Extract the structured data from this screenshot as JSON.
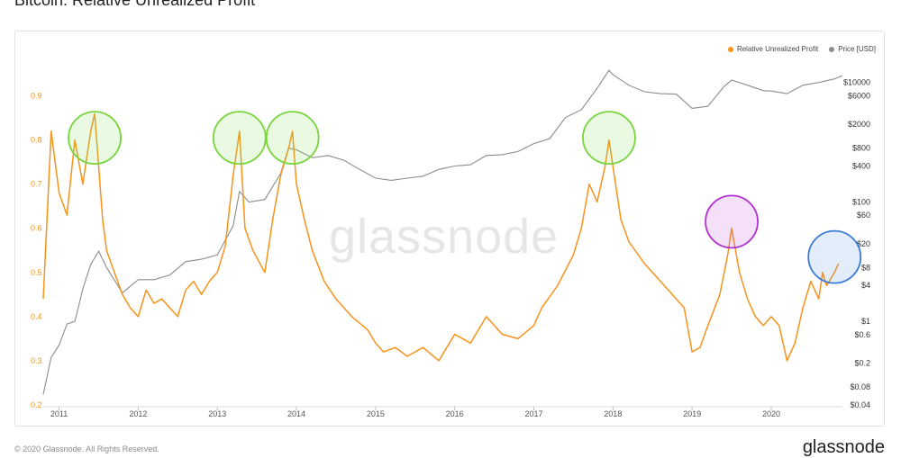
{
  "title": "Bitcoin: Relative Unrealized Profit",
  "legend": {
    "rup": "Relative Unrealized Profit",
    "price": "Price [USD]"
  },
  "watermark": "glassnode",
  "copyright": "© 2020 Glassnode. All Rights Reserved.",
  "brand": "glassnode",
  "colors": {
    "rup": "#f7931a",
    "price": "#8c8c8c",
    "green": "#77d43a",
    "purple": "#b02ed2",
    "blue": "#3a7bd5"
  },
  "chart_data": {
    "type": "line",
    "title": "Bitcoin: Relative Unrealized Profit",
    "x_ticks": [
      "2011",
      "2012",
      "2013",
      "2014",
      "2015",
      "2016",
      "2017",
      "2018",
      "2019",
      "2020"
    ],
    "x_range": [
      2010.8,
      2020.9
    ],
    "y_left": {
      "ticks": [
        "0.2",
        "0.3",
        "0.4",
        "0.5",
        "0.6",
        "0.7",
        "0.8",
        "0.9"
      ],
      "range": [
        0.2,
        0.95
      ]
    },
    "y_right": {
      "scale": "log",
      "ticks": [
        "$0.04",
        "$0.08",
        "$0.2",
        "$0.6",
        "$1",
        "$4",
        "$8",
        "$20",
        "$60",
        "$100",
        "$400",
        "$800",
        "$2000",
        "$6000",
        "$10000"
      ],
      "range": [
        0.04,
        14000
      ]
    },
    "series": [
      {
        "name": "Relative Unrealized Profit",
        "axis": "left",
        "x": [
          2010.8,
          2010.9,
          2011.0,
          2011.1,
          2011.2,
          2011.3,
          2011.4,
          2011.45,
          2011.5,
          2011.55,
          2011.6,
          2011.7,
          2011.8,
          2011.9,
          2012.0,
          2012.1,
          2012.2,
          2012.3,
          2012.4,
          2012.5,
          2012.6,
          2012.7,
          2012.8,
          2012.9,
          2013.0,
          2013.1,
          2013.2,
          2013.28,
          2013.35,
          2013.45,
          2013.6,
          2013.7,
          2013.8,
          2013.9,
          2013.95,
          2014.0,
          2014.1,
          2014.2,
          2014.35,
          2014.5,
          2014.7,
          2014.9,
          2015.0,
          2015.1,
          2015.25,
          2015.4,
          2015.6,
          2015.8,
          2016.0,
          2016.2,
          2016.4,
          2016.5,
          2016.6,
          2016.8,
          2017.0,
          2017.1,
          2017.3,
          2017.5,
          2017.6,
          2017.7,
          2017.8,
          2017.9,
          2017.95,
          2018.0,
          2018.1,
          2018.2,
          2018.4,
          2018.6,
          2018.8,
          2018.9,
          2019.0,
          2019.1,
          2019.2,
          2019.35,
          2019.45,
          2019.5,
          2019.55,
          2019.6,
          2019.7,
          2019.8,
          2019.9,
          2020.0,
          2020.1,
          2020.2,
          2020.3,
          2020.4,
          2020.5,
          2020.6,
          2020.65,
          2020.7,
          2020.8,
          2020.85
        ],
        "values": [
          0.44,
          0.82,
          0.68,
          0.63,
          0.8,
          0.7,
          0.82,
          0.86,
          0.74,
          0.62,
          0.55,
          0.5,
          0.45,
          0.42,
          0.4,
          0.46,
          0.43,
          0.44,
          0.42,
          0.4,
          0.46,
          0.48,
          0.45,
          0.48,
          0.5,
          0.56,
          0.72,
          0.82,
          0.6,
          0.55,
          0.5,
          0.62,
          0.72,
          0.78,
          0.82,
          0.7,
          0.62,
          0.55,
          0.48,
          0.44,
          0.4,
          0.37,
          0.34,
          0.32,
          0.33,
          0.31,
          0.33,
          0.3,
          0.36,
          0.34,
          0.4,
          0.38,
          0.36,
          0.35,
          0.38,
          0.42,
          0.47,
          0.54,
          0.6,
          0.7,
          0.66,
          0.74,
          0.8,
          0.74,
          0.62,
          0.57,
          0.52,
          0.48,
          0.44,
          0.42,
          0.32,
          0.33,
          0.38,
          0.45,
          0.54,
          0.6,
          0.55,
          0.5,
          0.44,
          0.4,
          0.38,
          0.4,
          0.38,
          0.3,
          0.34,
          0.42,
          0.48,
          0.44,
          0.5,
          0.47,
          0.5,
          0.52
        ]
      },
      {
        "name": "Price [USD]",
        "axis": "right",
        "x": [
          2010.8,
          2010.9,
          2011.0,
          2011.1,
          2011.2,
          2011.3,
          2011.4,
          2011.5,
          2011.6,
          2011.8,
          2012.0,
          2012.2,
          2012.4,
          2012.6,
          2012.8,
          2013.0,
          2013.2,
          2013.28,
          2013.4,
          2013.6,
          2013.8,
          2013.9,
          2014.0,
          2014.2,
          2014.4,
          2014.6,
          2014.8,
          2015.0,
          2015.2,
          2015.4,
          2015.6,
          2015.8,
          2016.0,
          2016.2,
          2016.4,
          2016.6,
          2016.8,
          2017.0,
          2017.2,
          2017.4,
          2017.6,
          2017.8,
          2017.95,
          2018.0,
          2018.2,
          2018.4,
          2018.6,
          2018.8,
          2019.0,
          2019.2,
          2019.4,
          2019.5,
          2019.7,
          2019.9,
          2020.0,
          2020.2,
          2020.4,
          2020.6,
          2020.8,
          2020.9
        ],
        "values": [
          0.06,
          0.25,
          0.4,
          0.9,
          1.0,
          3.5,
          9,
          15,
          8,
          3,
          5,
          5,
          6,
          10,
          11,
          13,
          40,
          150,
          100,
          110,
          300,
          800,
          750,
          550,
          600,
          500,
          350,
          250,
          230,
          250,
          270,
          350,
          400,
          420,
          600,
          620,
          700,
          950,
          1150,
          2600,
          3500,
          8000,
          16000,
          13500,
          9000,
          7000,
          6500,
          6400,
          3700,
          4000,
          8500,
          11000,
          9000,
          7300,
          7200,
          6500,
          9000,
          10000,
          11500,
          13000
        ]
      }
    ],
    "annotations": [
      {
        "shape": "circle",
        "color": "green",
        "x": 2011.45,
        "y": 0.805
      },
      {
        "shape": "circle",
        "color": "green",
        "x": 2013.28,
        "y": 0.805
      },
      {
        "shape": "circle",
        "color": "green",
        "x": 2013.95,
        "y": 0.805
      },
      {
        "shape": "circle",
        "color": "green",
        "x": 2017.95,
        "y": 0.805
      },
      {
        "shape": "circle",
        "color": "purple",
        "x": 2019.5,
        "y": 0.615
      },
      {
        "shape": "circle",
        "color": "blue",
        "x": 2020.8,
        "y": 0.535
      }
    ]
  }
}
